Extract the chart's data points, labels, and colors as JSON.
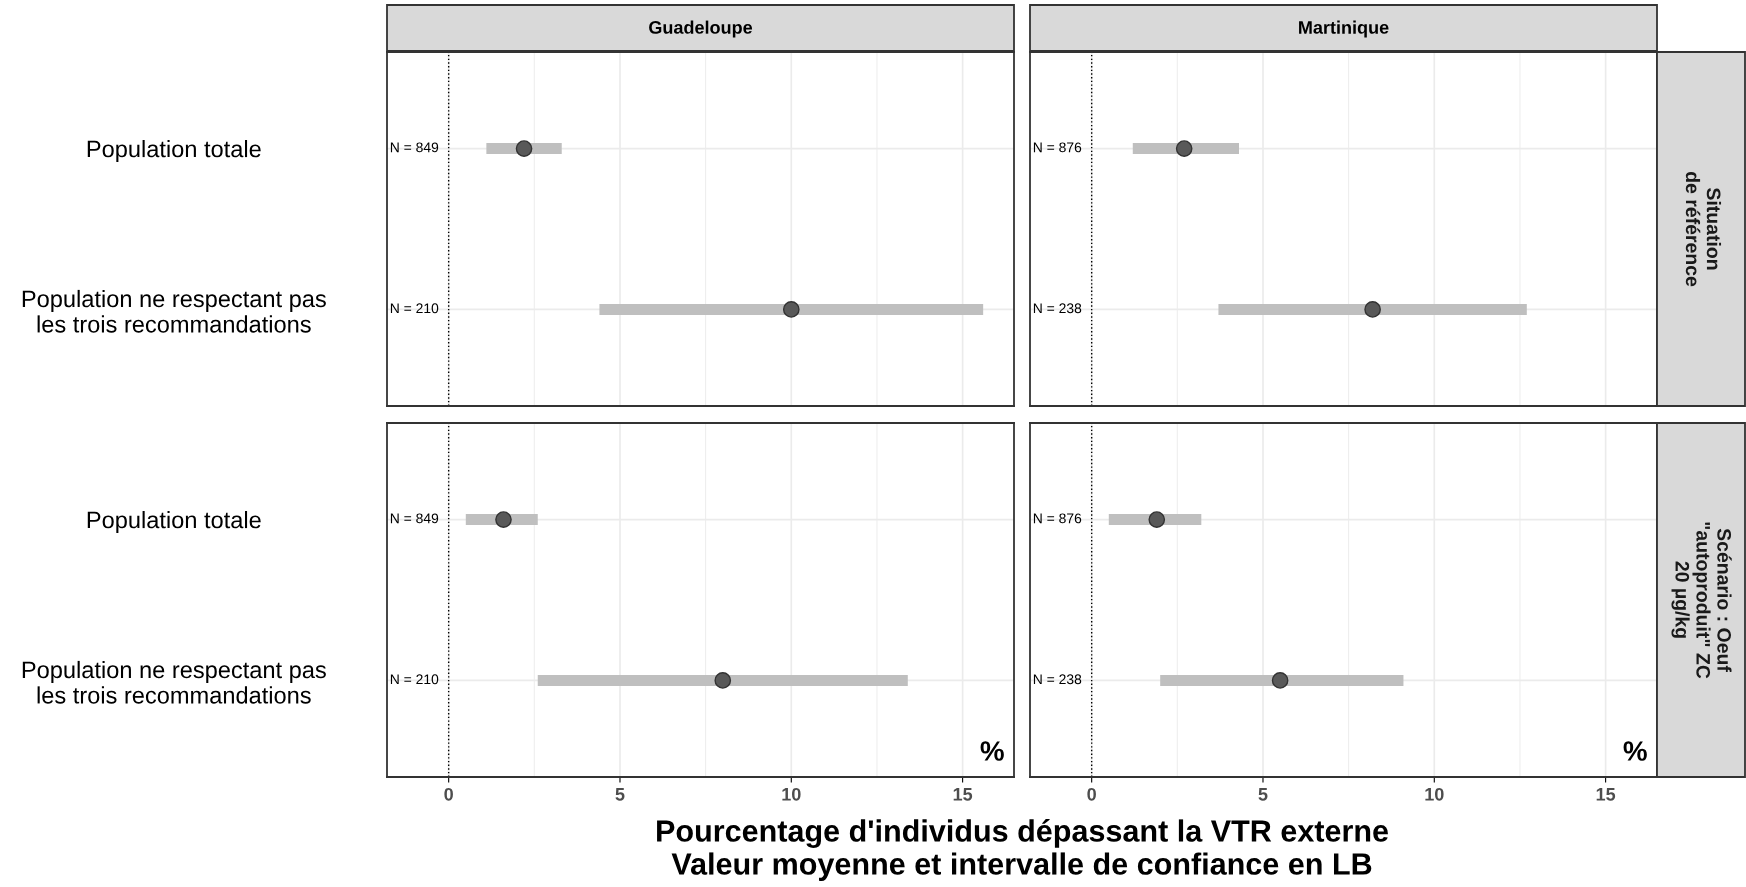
{
  "chart_data": [
    {
      "type": "scatter",
      "orientation": "horizontal",
      "title": "Guadeloupe",
      "categories": [
        "Population totale",
        "Population ne respectant pas\nles trois recommandations"
      ],
      "series": [
        {
          "color": "#595959",
          "values": [
            2.2,
            10.0
          ],
          "errors": [
            [
              1.1,
              3.3
            ],
            [
              4.4,
              15.6
            ]
          ]
        }
      ],
      "xlim": [
        -1.8,
        16.5
      ],
      "xticks": [
        0,
        5,
        10,
        15
      ],
      "tick_labels": "y",
      "grid": true,
      "marker": "circle",
      "ref_lines": [
        {
          "axis": "x",
          "value": 0,
          "line_style": "dotted",
          "color": "#000000"
        }
      ],
      "annotations": [
        "N = 849",
        "N = 210"
      ]
    },
    {
      "type": "scatter",
      "orientation": "horizontal",
      "title": "Martinique",
      "y2label": "Situation\nde référence",
      "categories": [
        null,
        null
      ],
      "series": [
        {
          "color": "#595959",
          "values": [
            2.7,
            8.2
          ],
          "errors": [
            [
              1.2,
              4.3
            ],
            [
              3.7,
              12.7
            ]
          ]
        }
      ],
      "xlim": [
        -1.8,
        16.5
      ],
      "xticks": [
        0,
        5,
        10,
        15
      ],
      "tick_labels": false,
      "grid": true,
      "marker": "circle",
      "ref_lines": [
        {
          "axis": "x",
          "value": 0,
          "line_style": "dotted",
          "color": "#000000"
        }
      ],
      "annotations": [
        "N = 876",
        "N = 238"
      ]
    },
    {
      "type": "scatter",
      "orientation": "horizontal",
      "xlabel": "Pourcentage d'individus dépassant la VTR externe\nValeur moyenne et intervalle de confiance en LB",
      "categories": [
        "Population totale",
        "Population ne respectant pas\nles trois recommandations"
      ],
      "series": [
        {
          "color": "#595959",
          "values": [
            1.6,
            8.0
          ],
          "errors": [
            [
              0.5,
              2.6
            ],
            [
              2.6,
              13.4
            ]
          ]
        }
      ],
      "xlim": [
        -1.8,
        16.5
      ],
      "xticks": [
        0,
        5,
        10,
        15
      ],
      "grid": true,
      "marker": "circle",
      "ref_lines": [
        {
          "axis": "x",
          "value": 0,
          "line_style": "dotted",
          "color": "#000000"
        }
      ],
      "annotations": [
        "N = 849",
        "N = 210",
        "%"
      ]
    },
    {
      "type": "scatter",
      "orientation": "horizontal",
      "y2label": "Scénario : Oeuf\n\"autoproduit\" ZC\n20 µg/kg",
      "categories": [
        null,
        null
      ],
      "series": [
        {
          "color": "#595959",
          "values": [
            1.9,
            5.5
          ],
          "errors": [
            [
              0.5,
              3.2
            ],
            [
              2.0,
              9.1
            ]
          ]
        }
      ],
      "xlim": [
        -1.8,
        16.5
      ],
      "xticks": [
        0,
        5,
        10,
        15
      ],
      "tick_labels": "x",
      "grid": true,
      "marker": "circle",
      "ref_lines": [
        {
          "axis": "x",
          "value": 0,
          "line_style": "dotted",
          "color": "#000000"
        }
      ],
      "annotations": [
        "N = 876",
        "N = 238",
        "%"
      ]
    }
  ]
}
